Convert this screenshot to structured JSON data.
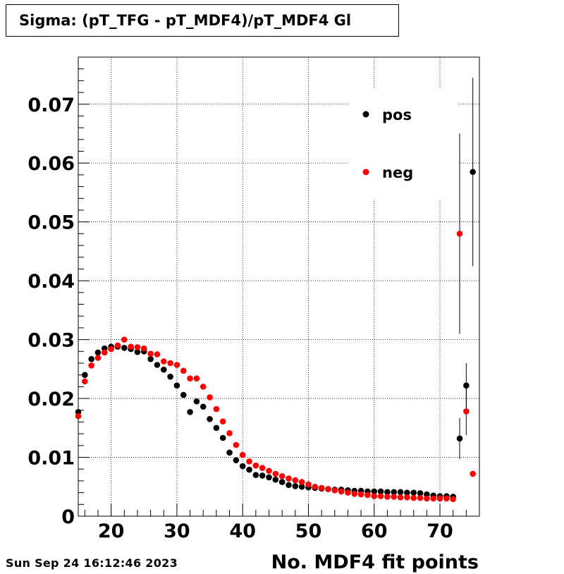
{
  "title": "Sigma: (pT_TFG - pT_MDF4)/pT_MDF4 Gl",
  "timestamp": "Sun Sep 24 16:12:46 2023",
  "chart_data": {
    "type": "scatter",
    "title": "Sigma: (pT_TFG - pT_MDF4)/pT_MDF4 Gl",
    "xlabel": "No. MDF4 fit points",
    "ylabel": "",
    "xlim": [
      15,
      76
    ],
    "ylim": [
      0,
      0.078
    ],
    "xticks": [
      "20",
      "30",
      "40",
      "50",
      "60",
      "70"
    ],
    "yticks": [
      "0",
      "0.01",
      "0.02",
      "0.03",
      "0.04",
      "0.05",
      "0.06",
      "0.07"
    ],
    "grid": true,
    "legend_position": "top-right",
    "series": [
      {
        "name": "pos",
        "color": "#000000",
        "x": [
          15,
          16,
          17,
          18,
          19,
          20,
          21,
          22,
          23,
          24,
          25,
          26,
          27,
          28,
          29,
          30,
          31,
          32,
          33,
          34,
          35,
          36,
          37,
          38,
          39,
          40,
          41,
          42,
          43,
          44,
          45,
          46,
          47,
          48,
          49,
          50,
          51,
          52,
          53,
          54,
          55,
          56,
          57,
          58,
          59,
          60,
          61,
          62,
          63,
          64,
          65,
          66,
          67,
          68,
          69,
          70,
          71,
          72,
          73,
          74,
          75
        ],
        "y": [
          0.0177,
          0.024,
          0.0267,
          0.0278,
          0.0285,
          0.0288,
          0.0288,
          0.0286,
          0.0284,
          0.0279,
          0.028,
          0.0267,
          0.0257,
          0.0249,
          0.0237,
          0.0222,
          0.0206,
          0.0177,
          0.0195,
          0.0186,
          0.0165,
          0.015,
          0.0133,
          0.0108,
          0.0095,
          0.0085,
          0.0079,
          0.007,
          0.0069,
          0.0066,
          0.0062,
          0.0058,
          0.0053,
          0.0051,
          0.005,
          0.0049,
          0.0048,
          0.0047,
          0.0046,
          0.0045,
          0.0045,
          0.0044,
          0.0043,
          0.0043,
          0.0042,
          0.0042,
          0.0042,
          0.0041,
          0.0041,
          0.0041,
          0.004,
          0.004,
          0.0039,
          0.0037,
          0.0035,
          0.0034,
          0.0034,
          0.0033,
          0.0132,
          0.0222,
          0.0585
        ],
        "yerr": [
          0,
          0,
          0,
          0,
          0,
          0,
          0,
          0,
          0,
          0,
          0,
          0,
          0,
          0,
          0,
          0,
          0,
          0,
          0,
          0,
          0,
          0,
          0,
          0,
          0,
          0,
          0,
          0,
          0,
          0,
          0,
          0,
          0,
          0,
          0,
          0,
          0,
          0,
          0,
          0,
          0,
          0,
          0,
          0,
          0,
          0,
          0,
          0,
          0,
          0,
          0,
          0,
          0,
          0,
          0,
          0,
          0,
          0,
          0.0035,
          0.0038,
          0.016
        ]
      },
      {
        "name": "neg",
        "color": "#ff0000",
        "x": [
          15,
          16,
          17,
          18,
          19,
          20,
          21,
          22,
          23,
          24,
          25,
          26,
          27,
          28,
          29,
          30,
          31,
          32,
          33,
          34,
          35,
          36,
          37,
          38,
          39,
          40,
          41,
          42,
          43,
          44,
          45,
          46,
          47,
          48,
          49,
          50,
          51,
          52,
          53,
          54,
          55,
          56,
          57,
          58,
          59,
          60,
          61,
          62,
          63,
          64,
          65,
          66,
          67,
          68,
          69,
          70,
          71,
          72,
          73,
          74,
          75
        ],
        "y": [
          0.017,
          0.0229,
          0.0256,
          0.0269,
          0.0278,
          0.0284,
          0.029,
          0.03,
          0.0288,
          0.0287,
          0.0285,
          0.0276,
          0.0275,
          0.0263,
          0.026,
          0.0257,
          0.0247,
          0.0234,
          0.0234,
          0.022,
          0.0202,
          0.0182,
          0.0161,
          0.0141,
          0.0121,
          0.0104,
          0.0093,
          0.0086,
          0.0082,
          0.0077,
          0.0072,
          0.0068,
          0.0064,
          0.0061,
          0.0058,
          0.0054,
          0.005,
          0.0048,
          0.0046,
          0.0044,
          0.0042,
          0.004,
          0.0038,
          0.0037,
          0.0036,
          0.0034,
          0.0034,
          0.0033,
          0.0033,
          0.0032,
          0.0032,
          0.0031,
          0.0031,
          0.003,
          0.003,
          0.003,
          0.003,
          0.0029,
          0.048,
          0.0178,
          0.0072
        ],
        "yerr": [
          0,
          0,
          0,
          0,
          0,
          0,
          0,
          0,
          0,
          0,
          0,
          0,
          0,
          0,
          0,
          0,
          0,
          0,
          0,
          0,
          0,
          0,
          0,
          0,
          0,
          0,
          0,
          0,
          0,
          0,
          0,
          0,
          0,
          0,
          0,
          0,
          0,
          0,
          0,
          0,
          0,
          0,
          0,
          0,
          0,
          0,
          0,
          0,
          0,
          0,
          0,
          0,
          0,
          0,
          0,
          0,
          0,
          0,
          0.017,
          0.004,
          0
        ]
      }
    ]
  }
}
